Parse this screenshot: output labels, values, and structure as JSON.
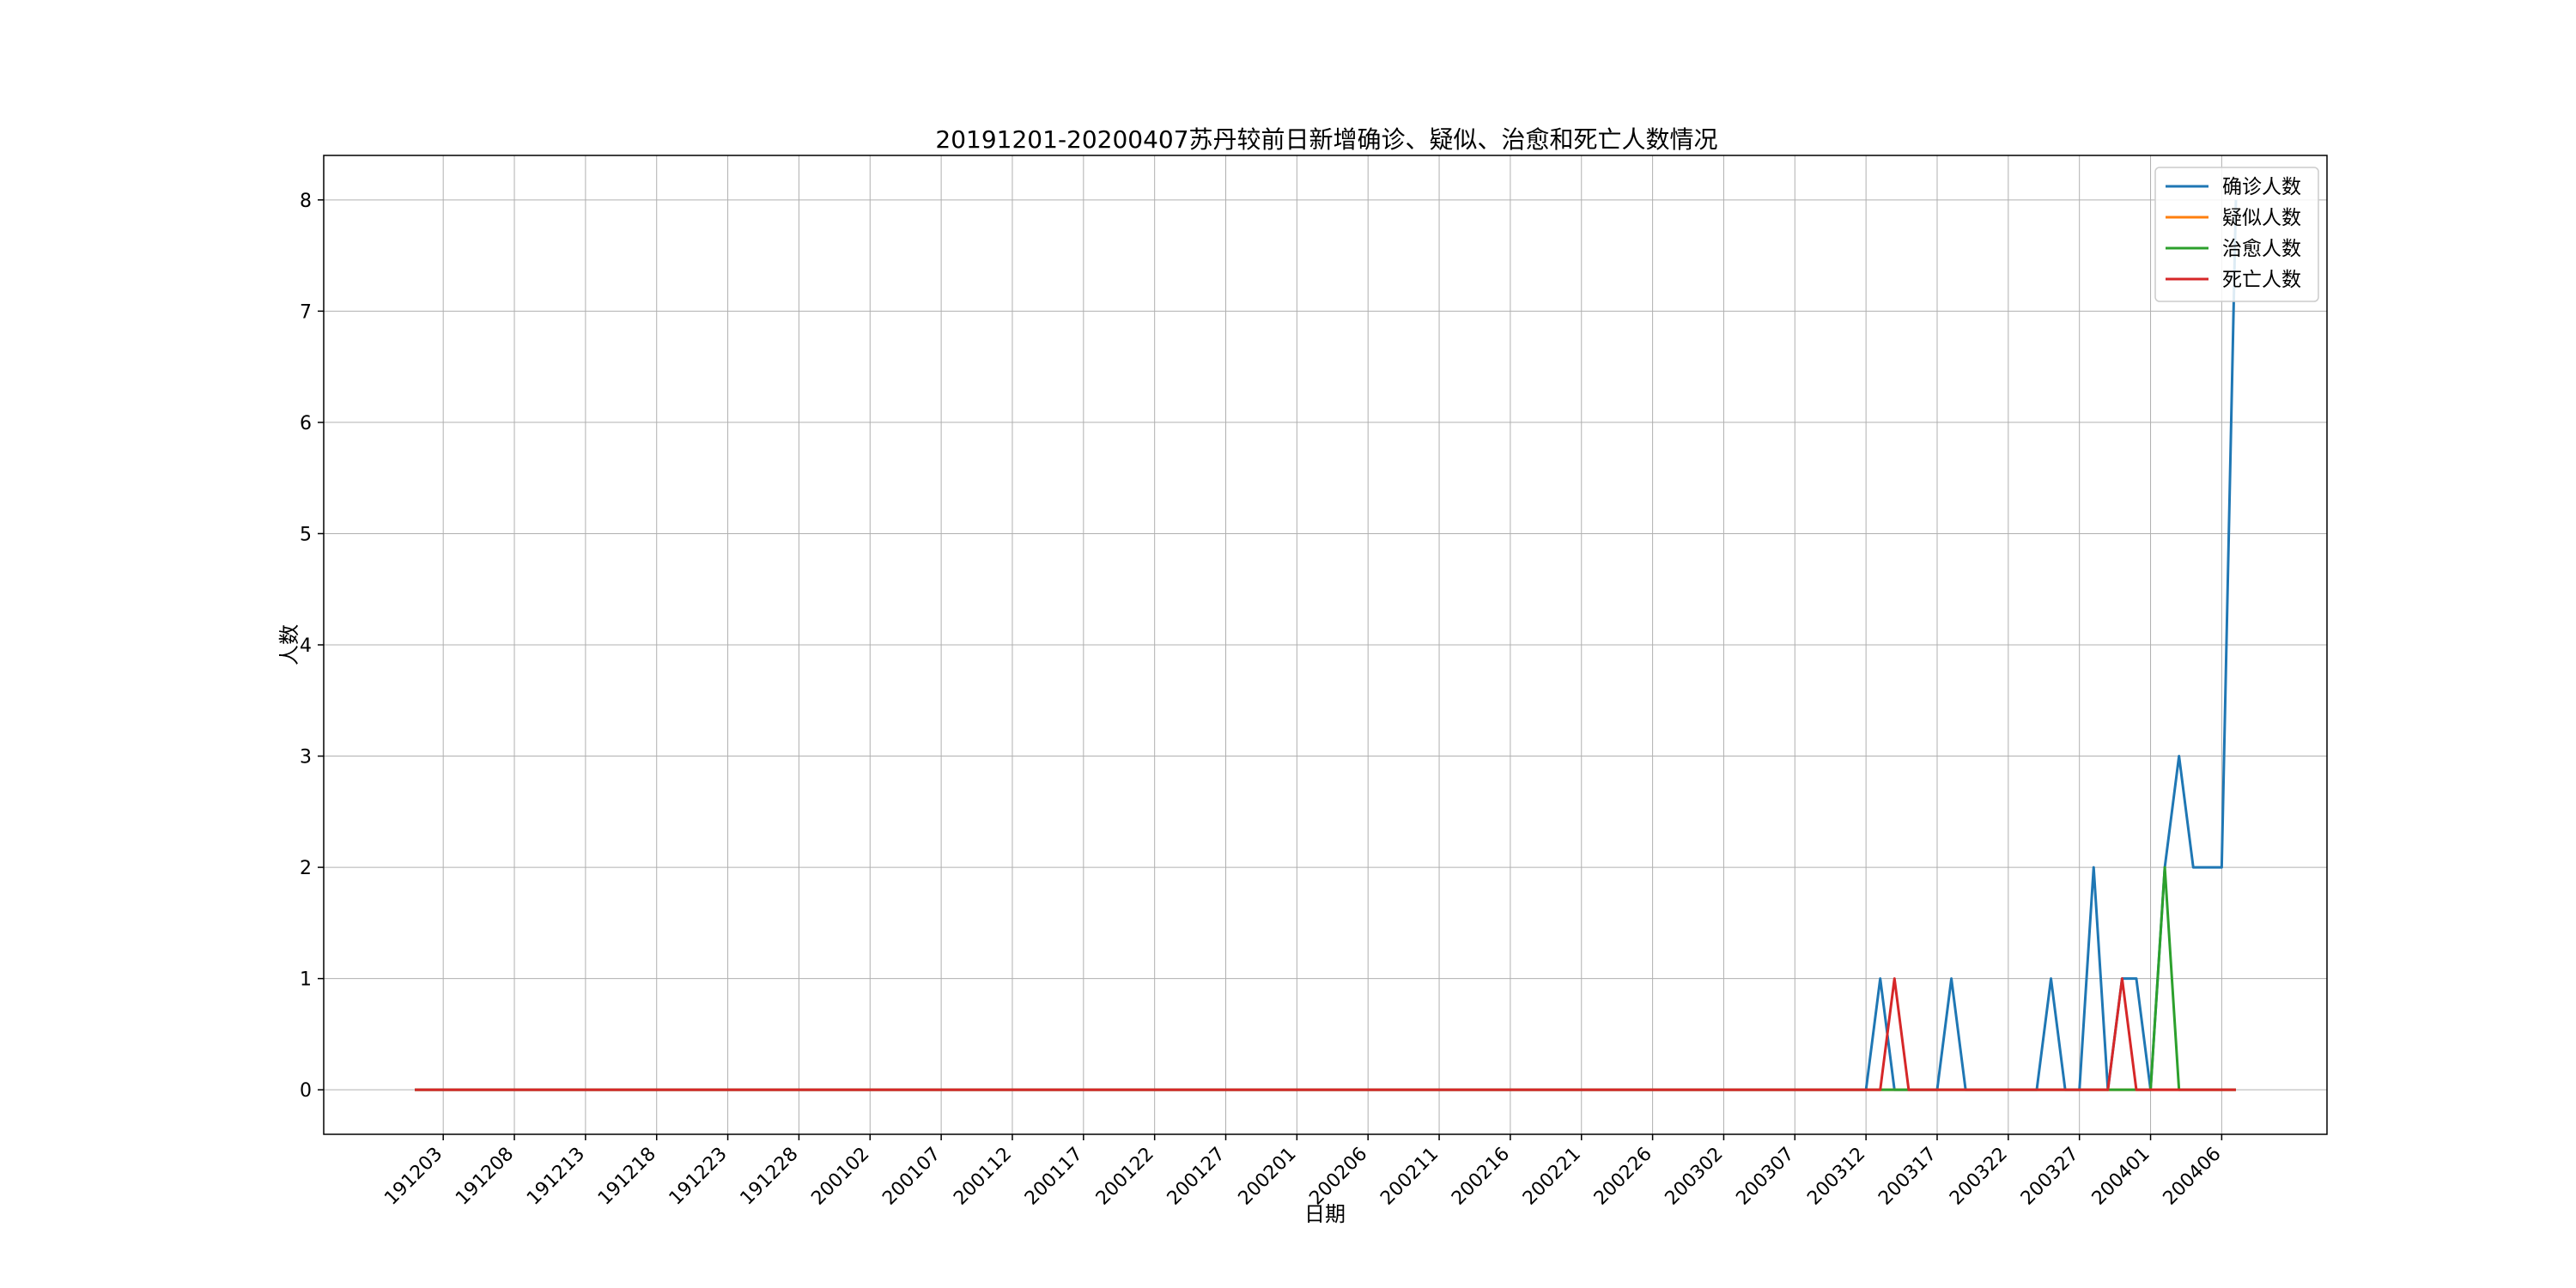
{
  "chart_data": {
    "type": "line",
    "title": "20191201-20200407苏丹较前日新增确诊、疑似、治愈和死亡人数情况",
    "xlabel": "日期",
    "ylabel": "人数",
    "ylim": [
      -0.4,
      8.4
    ],
    "yticks": [
      0,
      1,
      2,
      3,
      4,
      5,
      6,
      7,
      8
    ],
    "x_start": "2019-12-01",
    "x_end": "2020-04-07",
    "xticks": [
      "191203",
      "191208",
      "191213",
      "191218",
      "191223",
      "191228",
      "200102",
      "200107",
      "200112",
      "200117",
      "200122",
      "200127",
      "200201",
      "200206",
      "200211",
      "200216",
      "200221",
      "200226",
      "200302",
      "200307",
      "200312",
      "200317",
      "200322",
      "200327",
      "200401",
      "200406"
    ],
    "grid": true,
    "legend_position": "top-right",
    "series": [
      {
        "name": "确诊人数",
        "color": "#1f77b4",
        "points": [
          {
            "x": "2019-12-01",
            "y": 0
          },
          {
            "x": "2020-03-12",
            "y": 0
          },
          {
            "x": "2020-03-13",
            "y": 1
          },
          {
            "x": "2020-03-14",
            "y": 0
          },
          {
            "x": "2020-03-17",
            "y": 0
          },
          {
            "x": "2020-03-18",
            "y": 1
          },
          {
            "x": "2020-03-19",
            "y": 0
          },
          {
            "x": "2020-03-24",
            "y": 0
          },
          {
            "x": "2020-03-25",
            "y": 1
          },
          {
            "x": "2020-03-26",
            "y": 0
          },
          {
            "x": "2020-03-27",
            "y": 0
          },
          {
            "x": "2020-03-28",
            "y": 2
          },
          {
            "x": "2020-03-29",
            "y": 0
          },
          {
            "x": "2020-03-30",
            "y": 1
          },
          {
            "x": "2020-03-31",
            "y": 1
          },
          {
            "x": "2020-04-01",
            "y": 0
          },
          {
            "x": "2020-04-02",
            "y": 2
          },
          {
            "x": "2020-04-03",
            "y": 3
          },
          {
            "x": "2020-04-04",
            "y": 2
          },
          {
            "x": "2020-04-05",
            "y": 2
          },
          {
            "x": "2020-04-06",
            "y": 2
          },
          {
            "x": "2020-04-07",
            "y": 8
          }
        ]
      },
      {
        "name": "疑似人数",
        "color": "#ff7f0e",
        "points": [
          {
            "x": "2019-12-01",
            "y": 0
          },
          {
            "x": "2020-04-07",
            "y": 0
          }
        ]
      },
      {
        "name": "治愈人数",
        "color": "#2ca02c",
        "points": [
          {
            "x": "2019-12-01",
            "y": 0
          },
          {
            "x": "2020-04-01",
            "y": 0
          },
          {
            "x": "2020-04-02",
            "y": 2
          },
          {
            "x": "2020-04-03",
            "y": 0
          },
          {
            "x": "2020-04-07",
            "y": 0
          }
        ]
      },
      {
        "name": "死亡人数",
        "color": "#d62728",
        "points": [
          {
            "x": "2019-12-01",
            "y": 0
          },
          {
            "x": "2020-03-13",
            "y": 0
          },
          {
            "x": "2020-03-14",
            "y": 1
          },
          {
            "x": "2020-03-15",
            "y": 0
          },
          {
            "x": "2020-03-29",
            "y": 0
          },
          {
            "x": "2020-03-30",
            "y": 1
          },
          {
            "x": "2020-03-31",
            "y": 0
          },
          {
            "x": "2020-04-07",
            "y": 0
          }
        ]
      }
    ]
  }
}
